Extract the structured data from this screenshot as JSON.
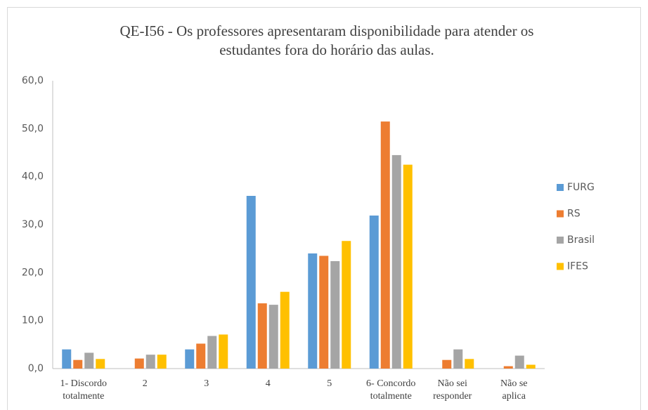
{
  "chart_data": {
    "type": "bar",
    "title": [
      "QE-I56 - Os professores apresentaram disponibilidade para atender os",
      "estudantes fora do horário das aulas."
    ],
    "categories": [
      [
        "1- Discordo",
        "totalmente"
      ],
      [
        "2"
      ],
      [
        "3"
      ],
      [
        "4"
      ],
      [
        "5"
      ],
      [
        "6- Concordo",
        "totalmente"
      ],
      [
        "Não sei",
        "responder"
      ],
      [
        "Não se",
        "aplica"
      ]
    ],
    "series": [
      {
        "name": "FURG",
        "color": "#5b9bd5",
        "values": [
          4.0,
          0,
          4.0,
          36.0,
          24.0,
          31.9,
          0,
          0
        ]
      },
      {
        "name": "RS",
        "color": "#ed7d31",
        "values": [
          1.8,
          2.1,
          5.2,
          13.6,
          23.5,
          51.5,
          1.8,
          0.5
        ]
      },
      {
        "name": "Brasil",
        "color": "#a5a5a5",
        "values": [
          3.3,
          2.9,
          6.8,
          13.3,
          22.4,
          44.5,
          4.0,
          2.7
        ]
      },
      {
        "name": "IFES",
        "color": "#ffc000",
        "values": [
          2.0,
          2.9,
          7.1,
          16.0,
          26.6,
          42.5,
          2.0,
          0.8
        ]
      }
    ],
    "ylim": [
      0,
      60
    ],
    "yticks": [
      {
        "value": 0,
        "label": "0,0"
      },
      {
        "value": 10,
        "label": "10,0"
      },
      {
        "value": 20,
        "label": "20,0"
      },
      {
        "value": 30,
        "label": "30,0"
      },
      {
        "value": 40,
        "label": "40,0"
      },
      {
        "value": 50,
        "label": "50,0"
      },
      {
        "value": 60,
        "label": "60,0"
      }
    ],
    "grid": false,
    "legend": "right"
  }
}
